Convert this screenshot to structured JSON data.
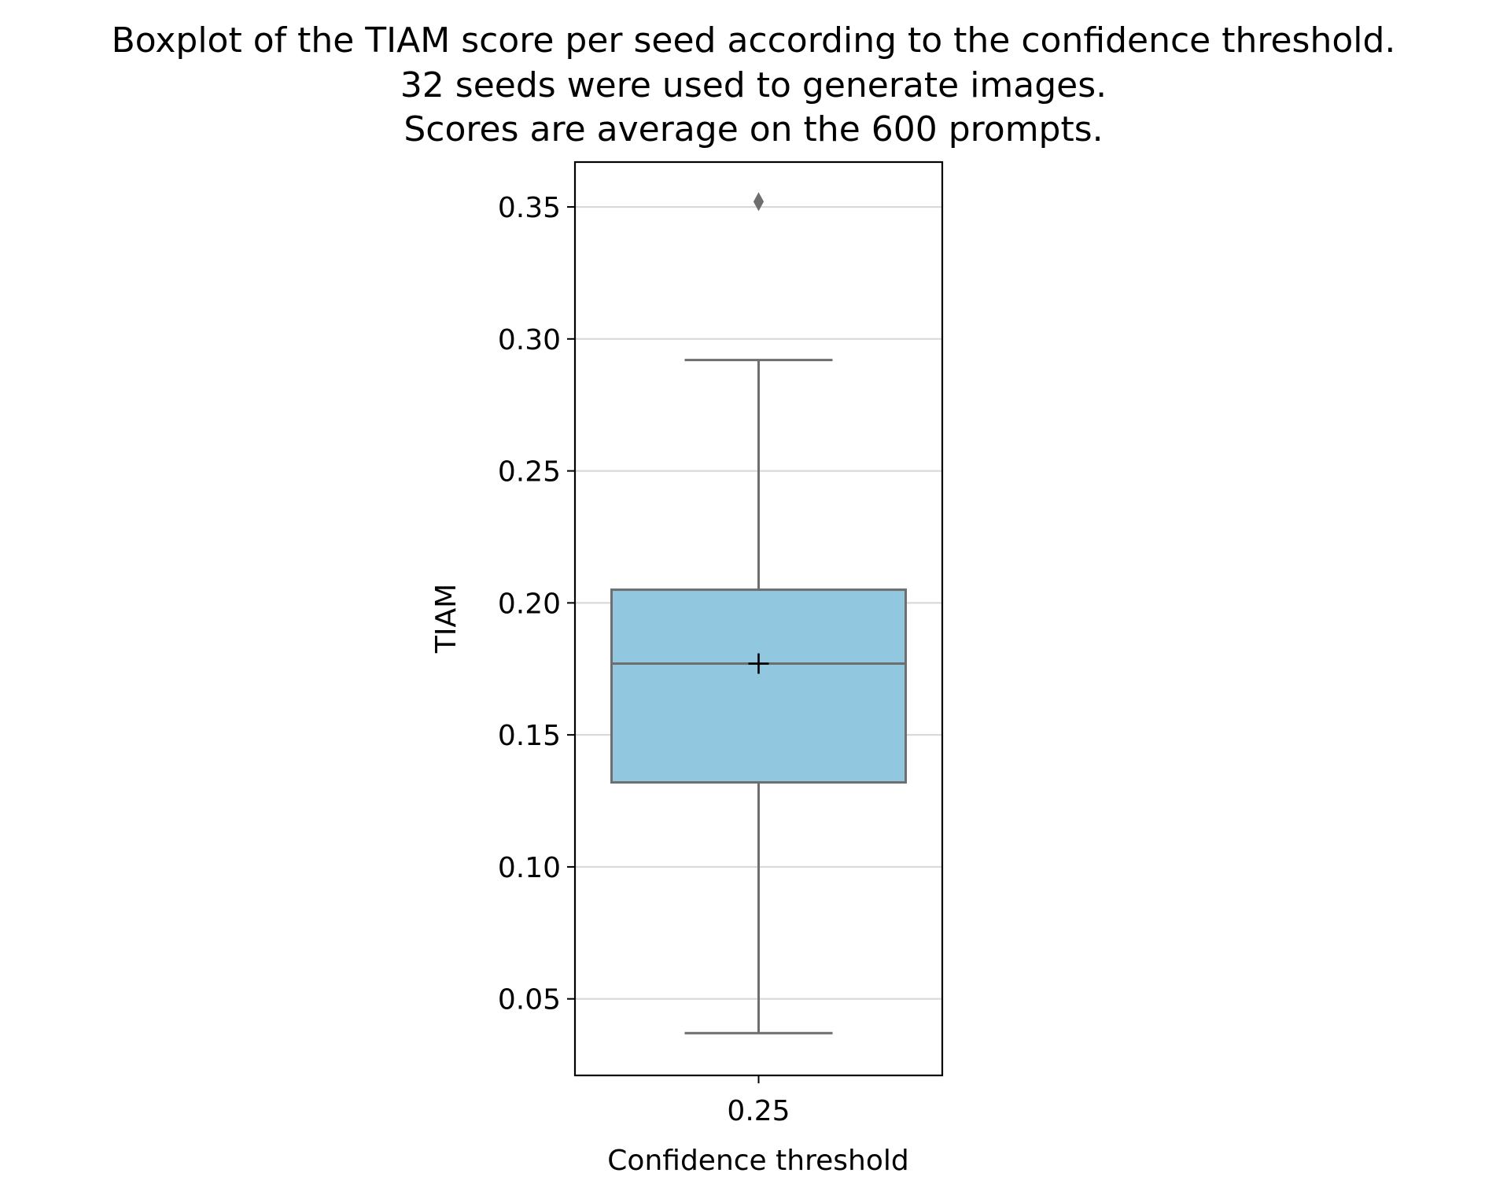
{
  "chart_data": {
    "type": "box",
    "title_lines": [
      "Boxplot of the TIAM score per seed according to the confidence threshold.",
      "32 seeds were used to generate images.",
      "Scores are average on the 600 prompts."
    ],
    "xlabel": "Confidence threshold",
    "ylabel": "TIAM",
    "categories": [
      "0.25"
    ],
    "y_ticks": [
      0.05,
      0.1,
      0.15,
      0.2,
      0.25,
      0.3,
      0.35
    ],
    "y_tick_labels": [
      "0.05",
      "0.10",
      "0.15",
      "0.20",
      "0.25",
      "0.30",
      "0.35"
    ],
    "ylim": [
      0.021,
      0.367
    ],
    "grid": "horizontal",
    "boxes": [
      {
        "category": "0.25",
        "whisker_low": 0.037,
        "q1": 0.132,
        "median": 0.177,
        "q3": 0.205,
        "whisker_high": 0.292,
        "mean": 0.177,
        "outliers": [
          0.352
        ]
      }
    ],
    "colors": {
      "box_fill": "#92c8df",
      "box_edge": "#6e6e6e",
      "grid": "#d9d9d9",
      "mean_marker": "#000000"
    }
  }
}
